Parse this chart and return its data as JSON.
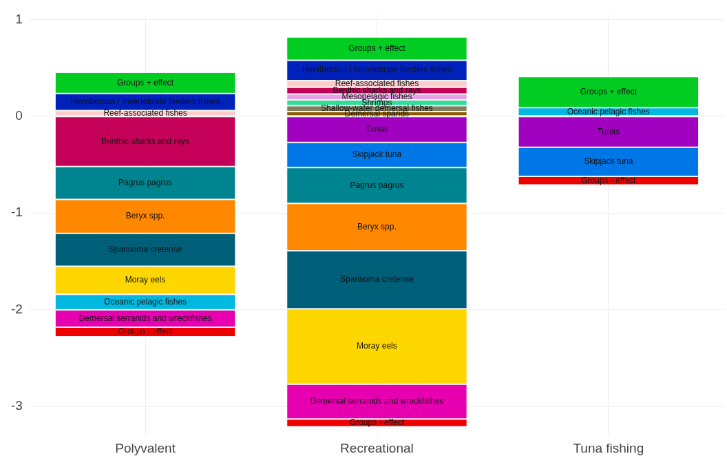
{
  "chart_data": {
    "type": "bar",
    "stacked": true,
    "categories": [
      "Polyvalent",
      "Recreational",
      "Tuna fishing"
    ],
    "ylim": [
      -3.3,
      1.05
    ],
    "yticks": [
      -3,
      -2,
      -1,
      0,
      1
    ],
    "grid": true,
    "legend": false,
    "series": [
      {
        "name": "Demersal sparids",
        "color": "#8b5a00",
        "values": [
          null,
          0.048,
          null
        ]
      },
      {
        "name": "Shallow-water demersal fishes",
        "color": "#808060",
        "values": [
          null,
          0.061,
          null
        ]
      },
      {
        "name": "Shrimps",
        "color": "#33dd99",
        "values": [
          null,
          0.061,
          null
        ]
      },
      {
        "name": "Mesopelagic fishes",
        "color": "#e8a0e8",
        "values": [
          null,
          0.06,
          null
        ]
      },
      {
        "name": "Benthic sharks and rays",
        "color": "#c40058",
        "values": [
          -0.52,
          0.07,
          null
        ]
      },
      {
        "name": "Reef-associated fishes",
        "color": "#ffcccc",
        "values": [
          0.06,
          0.07,
          null
        ]
      },
      {
        "name": "Herviborous / Invertebrate feeders fishes",
        "color": "#0022bb",
        "values": [
          0.175,
          0.21,
          null
        ]
      },
      {
        "name": "Tunas",
        "color": "#a000c0",
        "values": [
          null,
          -0.27,
          -0.32
        ]
      },
      {
        "name": "Skipjack tuna",
        "color": "#0077e6",
        "values": [
          null,
          -0.26,
          -0.3
        ]
      },
      {
        "name": "Pagrus pagrus",
        "color": "#00848f",
        "values": [
          -0.34,
          -0.37,
          null
        ]
      },
      {
        "name": "Beryx spp.",
        "color": "#ff8800",
        "values": [
          -0.35,
          -0.49,
          null
        ]
      },
      {
        "name": "Sparisoma cretense",
        "color": "#005f78",
        "values": [
          -0.34,
          -0.6,
          null
        ]
      },
      {
        "name": "Moray eels",
        "color": "#ffd700",
        "values": [
          -0.29,
          -0.78,
          null
        ]
      },
      {
        "name": "Oceanic pelagic fishes",
        "color": "#00b8e0",
        "values": [
          -0.16,
          null,
          0.09
        ]
      },
      {
        "name": "Demersal serranids and wreckfishes",
        "color": "#e600b0",
        "values": [
          -0.18,
          -0.36,
          null
        ]
      },
      {
        "name": "Groups - effect",
        "color": "#ee0000",
        "values": [
          -0.1,
          -0.08,
          -0.09
        ]
      },
      {
        "name": "Groups + effect",
        "color": "#00cc22",
        "values": [
          0.22,
          0.24,
          0.32
        ]
      }
    ]
  }
}
